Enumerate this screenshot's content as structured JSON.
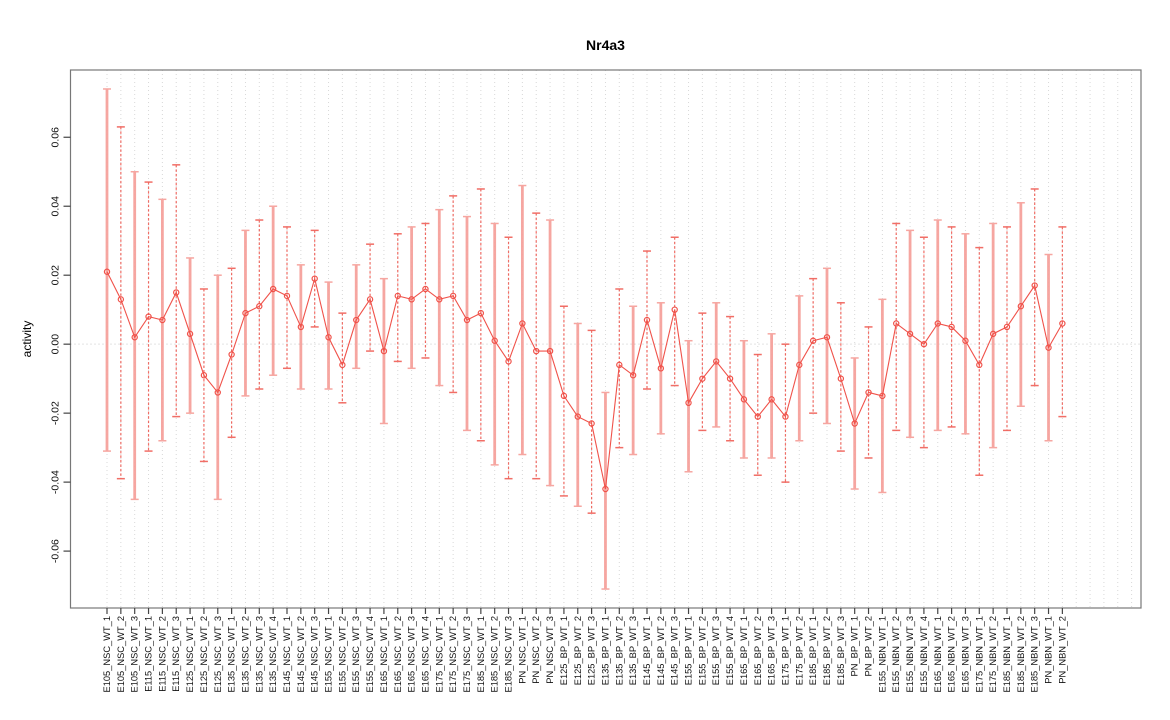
{
  "chart_data": {
    "type": "line",
    "title": "Nr4a3",
    "xlabel": "",
    "ylabel": "activity",
    "ylim": [
      -0.0765,
      0.0795
    ],
    "yticks": [
      0.06,
      0.04,
      0.02,
      0.0,
      -0.02,
      -0.04,
      -0.06
    ],
    "grid": "vertical dotted gridline at every category; dotted horizontal line at 0",
    "legend": "none",
    "marker": "open-circle",
    "categories": [
      "E105_NSC_WT_1",
      "E105_NSC_WT_2",
      "E105_NSC_WT_3",
      "E115_NSC_WT_1",
      "E115_NSC_WT_2",
      "E115_NSC_WT_3",
      "E125_NSC_WT_1",
      "E125_NSC_WT_2",
      "E125_NSC_WT_3",
      "E135_NSC_WT_1",
      "E135_NSC_WT_2",
      "E135_NSC_WT_3",
      "E135_NSC_WT_4",
      "E145_NSC_WT_1",
      "E145_NSC_WT_2",
      "E145_NSC_WT_3",
      "E155_NSC_WT_1",
      "E155_NSC_WT_2",
      "E155_NSC_WT_3",
      "E155_NSC_WT_4",
      "E165_NSC_WT_1",
      "E165_NSC_WT_2",
      "E165_NSC_WT_3",
      "E165_NSC_WT_4",
      "E175_NSC_WT_1",
      "E175_NSC_WT_2",
      "E175_NSC_WT_3",
      "E185_NSC_WT_1",
      "E185_NSC_WT_2",
      "E185_NSC_WT_3",
      "PN_NSC_WT_1",
      "PN_NSC_WT_2",
      "PN_NSC_WT_3",
      "E125_BP_WT_1",
      "E125_BP_WT_2",
      "E125_BP_WT_3",
      "E135_BP_WT_1",
      "E135_BP_WT_2",
      "E135_BP_WT_3",
      "E145_BP_WT_1",
      "E145_BP_WT_2",
      "E145_BP_WT_3",
      "E155_BP_WT_1",
      "E155_BP_WT_2",
      "E155_BP_WT_3",
      "E155_BP_WT_4",
      "E165_BP_WT_1",
      "E165_BP_WT_2",
      "E165_BP_WT_3",
      "E175_BP_WT_1",
      "E175_BP_WT_2",
      "E185_BP_WT_1",
      "E185_BP_WT_2",
      "E185_BP_WT_3",
      "PN_BP_WT_1",
      "PN_BP_WT_2",
      "E155_NBN_WT_1",
      "E155_NBN_WT_2",
      "E155_NBN_WT_3",
      "E155_NBN_WT_4",
      "E165_NBN_WT_1",
      "E165_NBN_WT_2",
      "E165_NBN_WT_3",
      "E175_NBN_WT_1",
      "E175_NBN_WT_2",
      "E185_NBN_WT_1",
      "E185_NBN_WT_2",
      "E185_NBN_WT_3",
      "PN_NBN_WT_1",
      "PN_NBN_WT_2"
    ],
    "series": [
      {
        "name": "activity",
        "values": [
          0.021,
          0.013,
          0.002,
          0.008,
          0.007,
          0.015,
          0.003,
          -0.009,
          -0.014,
          -0.003,
          0.009,
          0.011,
          0.016,
          0.014,
          0.005,
          0.019,
          0.002,
          -0.006,
          0.007,
          0.013,
          -0.002,
          0.014,
          0.013,
          0.016,
          0.013,
          0.014,
          0.007,
          0.009,
          0.001,
          -0.005,
          0.006,
          -0.002,
          -0.002,
          -0.015,
          -0.021,
          -0.023,
          -0.042,
          -0.006,
          -0.009,
          0.007,
          -0.007,
          0.01,
          -0.017,
          -0.01,
          -0.005,
          -0.01,
          -0.016,
          -0.021,
          -0.016,
          -0.021,
          -0.006,
          0.001,
          0.002,
          -0.01,
          -0.023,
          -0.014,
          -0.015,
          0.006,
          0.003,
          0.0,
          0.006,
          0.005,
          0.001,
          -0.006,
          0.003,
          0.005,
          0.011,
          0.017,
          -0.001,
          0.006
        ],
        "error_low": [
          -0.031,
          -0.039,
          -0.045,
          -0.031,
          -0.028,
          -0.021,
          -0.02,
          -0.034,
          -0.045,
          -0.027,
          -0.015,
          -0.013,
          -0.009,
          -0.007,
          -0.013,
          0.005,
          -0.013,
          -0.017,
          -0.007,
          -0.002,
          -0.023,
          -0.005,
          -0.007,
          -0.004,
          -0.012,
          -0.014,
          -0.025,
          -0.028,
          -0.035,
          -0.039,
          -0.032,
          -0.039,
          -0.041,
          -0.044,
          -0.047,
          -0.049,
          -0.071,
          -0.03,
          -0.032,
          -0.013,
          -0.026,
          -0.012,
          -0.037,
          -0.025,
          -0.024,
          -0.028,
          -0.033,
          -0.038,
          -0.033,
          -0.04,
          -0.028,
          -0.02,
          -0.023,
          -0.031,
          -0.042,
          -0.033,
          -0.043,
          -0.025,
          -0.027,
          -0.03,
          -0.025,
          -0.024,
          -0.026,
          -0.038,
          -0.03,
          -0.025,
          -0.018,
          -0.012,
          -0.028,
          -0.021
        ],
        "error_high": [
          0.074,
          0.063,
          0.05,
          0.047,
          0.042,
          0.052,
          0.025,
          0.016,
          0.02,
          0.022,
          0.033,
          0.036,
          0.04,
          0.034,
          0.023,
          0.033,
          0.018,
          0.009,
          0.023,
          0.029,
          0.019,
          0.032,
          0.034,
          0.035,
          0.039,
          0.043,
          0.037,
          0.045,
          0.035,
          0.031,
          0.046,
          0.038,
          0.036,
          0.011,
          0.006,
          0.004,
          -0.014,
          0.016,
          0.011,
          0.027,
          0.012,
          0.031,
          0.001,
          0.009,
          0.012,
          0.008,
          0.001,
          -0.003,
          0.003,
          0.0,
          0.014,
          0.019,
          0.022,
          0.012,
          -0.004,
          0.005,
          0.013,
          0.035,
          0.033,
          0.031,
          0.036,
          0.034,
          0.032,
          0.028,
          0.035,
          0.034,
          0.041,
          0.045,
          0.026,
          0.034
        ]
      }
    ],
    "colors": {
      "point_line": "#f0524a",
      "error_bar_light": "#f6a29c",
      "error_bar_dark": "#ee4a41",
      "gridline": "#d8d8d8",
      "zero_line": "#c8c8c8",
      "box": "#777777",
      "tick": "#444444",
      "text": "#111111"
    }
  }
}
